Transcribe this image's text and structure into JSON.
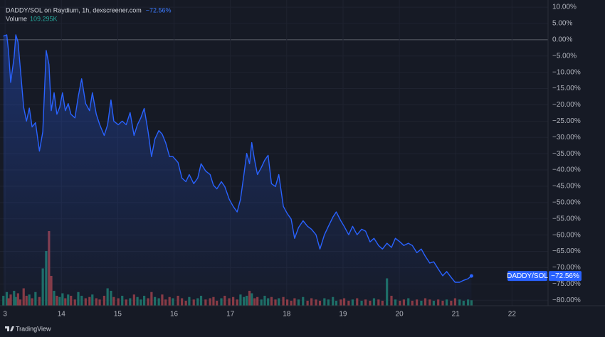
{
  "chart_data": {
    "type": "line",
    "title": "DADDY/SOL on Raydium, 1h, dexscreener.com",
    "change_label": "−72.56%",
    "volume_title": "Volume",
    "volume_label": "109.295K",
    "brand": "TradingView",
    "xlim": [
      12.91,
      22.64
    ],
    "xticks": [
      {
        "value": 13,
        "label": "3"
      },
      14,
      15,
      16,
      17,
      18,
      19,
      20,
      21,
      22
    ],
    "ylim": [
      -81.7,
      12.2
    ],
    "yticks": [
      {
        "value": 10,
        "label": "10.00%"
      },
      {
        "value": 5,
        "label": "5.00%"
      },
      {
        "value": 0,
        "label": "0.00%"
      },
      {
        "value": -5,
        "label": "−5.00%"
      },
      {
        "value": -10,
        "label": "−10.00%"
      },
      {
        "value": -15,
        "label": "−15.00%"
      },
      {
        "value": -20,
        "label": "−20.00%"
      },
      {
        "value": -25,
        "label": "−25.00%"
      },
      {
        "value": -30,
        "label": "−30.00%"
      },
      {
        "value": -35,
        "label": "−35.00%"
      },
      {
        "value": -40,
        "label": "−40.00%"
      },
      {
        "value": -45,
        "label": "−45.00%"
      },
      {
        "value": -50,
        "label": "−50.00%"
      },
      {
        "value": -55,
        "label": "−55.00%"
      },
      {
        "value": -60,
        "label": "−60.00%"
      },
      {
        "value": -65,
        "label": "−65.00%"
      },
      {
        "value": -70,
        "label": "−70.00%"
      },
      {
        "value": -75,
        "label": "−75.00%"
      },
      {
        "value": -80,
        "label": "−80.00%"
      }
    ],
    "grid": true,
    "x": [
      12.97,
      13.03,
      13.06,
      13.1,
      13.16,
      13.19,
      13.23,
      13.27,
      13.33,
      13.38,
      13.43,
      13.48,
      13.54,
      13.61,
      13.67,
      13.73,
      13.78,
      13.82,
      13.87,
      13.92,
      13.97,
      14.02,
      14.07,
      14.12,
      14.17,
      14.24,
      14.3,
      14.36,
      14.43,
      14.5,
      14.55,
      14.62,
      14.68,
      14.76,
      14.82,
      14.88,
      14.93,
      15.01,
      15.08,
      15.15,
      15.22,
      15.29,
      15.35,
      15.41,
      15.47,
      15.54,
      15.6,
      15.66,
      15.73,
      15.79,
      15.85,
      15.92,
      15.98,
      16.07,
      16.14,
      16.21,
      16.27,
      16.35,
      16.42,
      16.48,
      16.56,
      16.64,
      16.7,
      16.76,
      16.84,
      16.9,
      16.98,
      17.05,
      17.12,
      17.18,
      17.24,
      17.29,
      17.34,
      17.38,
      17.43,
      17.48,
      17.55,
      17.61,
      17.67,
      17.73,
      17.8,
      17.86,
      17.94,
      18.01,
      18.08,
      18.14,
      18.21,
      18.29,
      18.37,
      18.44,
      18.52,
      18.59,
      18.67,
      18.74,
      18.82,
      18.88,
      18.96,
      19.02,
      19.1,
      19.17,
      19.25,
      19.33,
      19.4,
      19.48,
      19.55,
      19.63,
      19.7,
      19.78,
      19.86,
      19.93,
      20.01,
      20.08,
      20.16,
      20.23,
      20.31,
      20.39,
      20.46,
      20.54,
      20.61,
      20.69,
      20.77,
      20.84,
      20.92,
      20.99,
      21.07,
      21.14,
      21.22,
      21.28
    ],
    "series": [
      {
        "name": "DADDY/SOL",
        "color": "#2962ff",
        "last_label": "−72.56%",
        "values": [
          1.1,
          1.5,
          -3.3,
          -13.1,
          -5.4,
          1.5,
          -0.7,
          -8.7,
          -20.7,
          -25,
          -21,
          -26.8,
          -25.5,
          -34.2,
          -28.3,
          -3.3,
          -7.6,
          -21.8,
          -16.3,
          -22.9,
          -20.7,
          -16.3,
          -21.8,
          -19.6,
          -22.9,
          -24,
          -17.4,
          -12,
          -19.6,
          -21.8,
          -16.3,
          -22.9,
          -26.1,
          -29.4,
          -26.1,
          -18.5,
          -25,
          -26.1,
          -25,
          -26.1,
          -22.4,
          -29.4,
          -26.1,
          -24,
          -21.1,
          -28.3,
          -35.9,
          -30.5,
          -27.9,
          -29,
          -31.6,
          -35.9,
          -35.9,
          -37.7,
          -42.5,
          -43.6,
          -41.4,
          -44.2,
          -42.5,
          -38.1,
          -40.3,
          -41.4,
          -44.7,
          -45.8,
          -43.6,
          -45.1,
          -49,
          -51.2,
          -52.9,
          -49,
          -41.4,
          -34.9,
          -38.1,
          -31.6,
          -37,
          -41.4,
          -39.2,
          -37,
          -35.5,
          -44.2,
          -45.1,
          -41.4,
          -51.2,
          -53.4,
          -55.1,
          -61,
          -57.7,
          -55.6,
          -57.3,
          -58.2,
          -59.9,
          -64.3,
          -59.9,
          -57.3,
          -54.5,
          -52.9,
          -55.6,
          -57.3,
          -59.9,
          -57.3,
          -59.9,
          -58.2,
          -58.8,
          -62.1,
          -61,
          -63.2,
          -64.3,
          -62.5,
          -63.8,
          -61,
          -62.1,
          -63.2,
          -62.5,
          -63.2,
          -65.4,
          -64.3,
          -66.5,
          -68.6,
          -68.2,
          -70.4,
          -72.5,
          -71.2,
          -73,
          -74.5,
          -74.5,
          -73.9,
          -73.4,
          -72.56
        ]
      }
    ],
    "volume": {
      "up_color": "#1e6e63",
      "down_color": "#8a3a41",
      "values": [
        40,
        55,
        30,
        45,
        60,
        35,
        50,
        25,
        70,
        40,
        45,
        30,
        55,
        35,
        150,
        220,
        300,
        120,
        60,
        40,
        35,
        50,
        30,
        45,
        40,
        25,
        55,
        40,
        30,
        35,
        45,
        30,
        25,
        40,
        70,
        60,
        35,
        30,
        40,
        25,
        30,
        45,
        35,
        25,
        40,
        30,
        55,
        35,
        30,
        45,
        25,
        35,
        30,
        40,
        30,
        20,
        35,
        25,
        30,
        40,
        25,
        30,
        35,
        20,
        30,
        40,
        30,
        35,
        25,
        45,
        35,
        40,
        60,
        50,
        30,
        35,
        25,
        40,
        30,
        35,
        25,
        30,
        35,
        25,
        20,
        30,
        25,
        35,
        20,
        30,
        25,
        20,
        30,
        25,
        35,
        20,
        25,
        30,
        20,
        25,
        30,
        20,
        25,
        20,
        30,
        25,
        20,
        110,
        40,
        25,
        20,
        25,
        30,
        20,
        25,
        20,
        30,
        25,
        20,
        25,
        20,
        25,
        20,
        30,
        25,
        20,
        25,
        22
      ]
    }
  }
}
